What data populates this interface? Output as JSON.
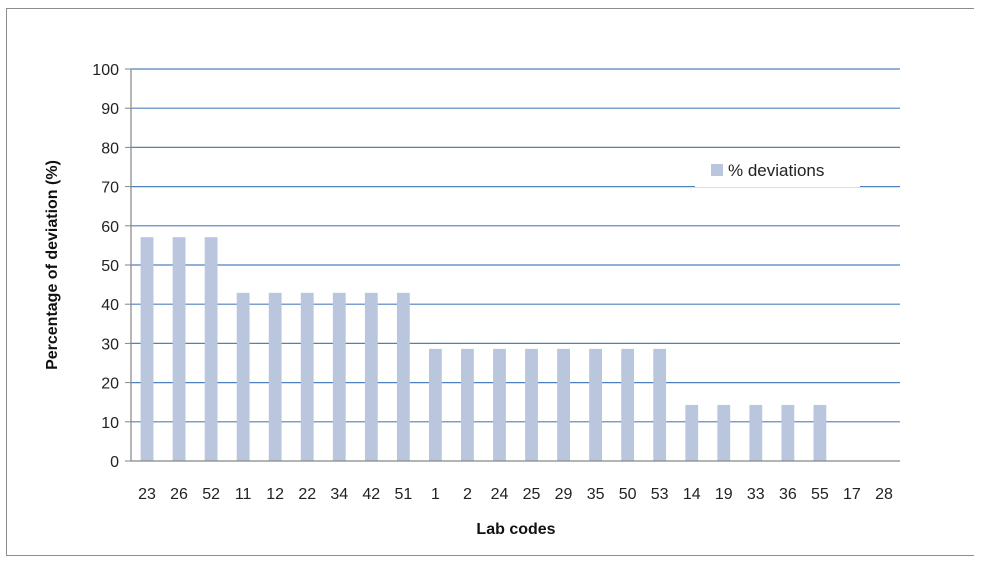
{
  "chart_data": {
    "type": "bar",
    "title": "",
    "xlabel": "Lab codes",
    "ylabel": "Percentage of deviation (%)",
    "ylim": [
      0,
      100
    ],
    "yticks": [
      0,
      10,
      20,
      30,
      40,
      50,
      60,
      70,
      80,
      90,
      100
    ],
    "grid": true,
    "legend_position": "right",
    "categories": [
      "23",
      "26",
      "52",
      "11",
      "12",
      "22",
      "34",
      "42",
      "51",
      "1",
      "2",
      "24",
      "25",
      "29",
      "35",
      "50",
      "53",
      "14",
      "19",
      "33",
      "36",
      "55",
      "17",
      "28"
    ],
    "series": [
      {
        "name": "% deviations",
        "color": "#b9c6de",
        "values": [
          57.1,
          57.1,
          57.1,
          42.9,
          42.9,
          42.9,
          42.9,
          42.9,
          42.9,
          28.6,
          28.6,
          28.6,
          28.6,
          28.6,
          28.6,
          28.6,
          28.6,
          14.3,
          14.3,
          14.3,
          14.3,
          14.3,
          0,
          0
        ]
      }
    ],
    "colors": {
      "gridline": "#4f81bd",
      "axis": "#868686",
      "bar": "#b9c6de"
    }
  }
}
